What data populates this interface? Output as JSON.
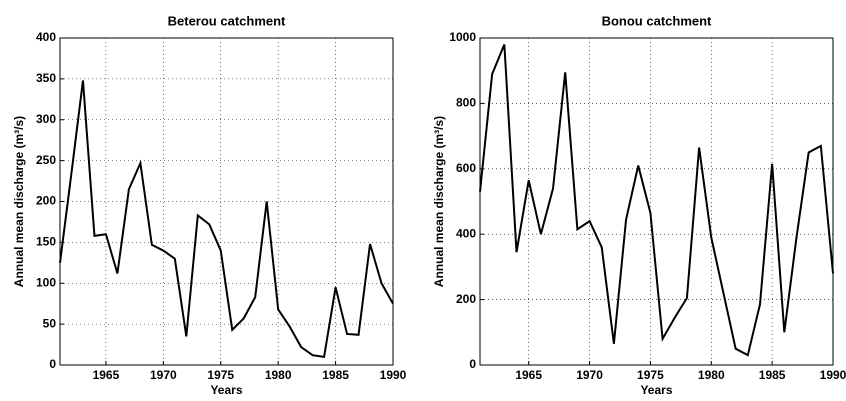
{
  "chart_data": [
    {
      "type": "line",
      "title": "Beterou catchment",
      "xlabel": "Years",
      "ylabel": "Annual mean discharge (m³/s)",
      "x": [
        1961,
        1962,
        1963,
        1964,
        1965,
        1966,
        1967,
        1968,
        1969,
        1970,
        1971,
        1972,
        1973,
        1974,
        1975,
        1976,
        1977,
        1978,
        1979,
        1980,
        1981,
        1982,
        1983,
        1984,
        1985,
        1986,
        1987,
        1988,
        1989,
        1990
      ],
      "values": [
        125,
        235,
        348,
        158,
        160,
        112,
        215,
        247,
        147,
        140,
        130,
        35,
        183,
        172,
        140,
        43,
        57,
        83,
        200,
        68,
        47,
        22,
        12,
        10,
        95,
        38,
        37,
        148,
        100,
        75
      ],
      "color": "#000000",
      "xlim": [
        1961,
        1990
      ],
      "xticks": [
        1965,
        1970,
        1975,
        1980,
        1985,
        1990
      ],
      "ylim": [
        0,
        400
      ],
      "yticks": [
        0,
        50,
        100,
        150,
        200,
        250,
        300,
        350,
        400
      ],
      "grid": true
    },
    {
      "type": "line",
      "title": "Bonou catchment",
      "xlabel": "Years",
      "ylabel": "Annual mean discharge (m³/s)",
      "x": [
        1961,
        1962,
        1963,
        1964,
        1965,
        1966,
        1967,
        1968,
        1969,
        1970,
        1971,
        1972,
        1973,
        1974,
        1975,
        1976,
        1977,
        1978,
        1979,
        1980,
        1981,
        1982,
        1983,
        1984,
        1985,
        1986,
        1987,
        1988,
        1989,
        1990
      ],
      "values": [
        530,
        890,
        980,
        345,
        565,
        400,
        540,
        895,
        415,
        440,
        360,
        65,
        445,
        610,
        465,
        80,
        145,
        205,
        665,
        390,
        220,
        50,
        30,
        185,
        615,
        100,
        390,
        650,
        670,
        280
      ],
      "color": "#000000",
      "xlim": [
        1961,
        1990
      ],
      "xticks": [
        1965,
        1970,
        1975,
        1980,
        1985,
        1990
      ],
      "ylim": [
        0,
        1000
      ],
      "yticks": [
        0,
        200,
        400,
        600,
        800,
        1000
      ],
      "grid": true
    }
  ]
}
